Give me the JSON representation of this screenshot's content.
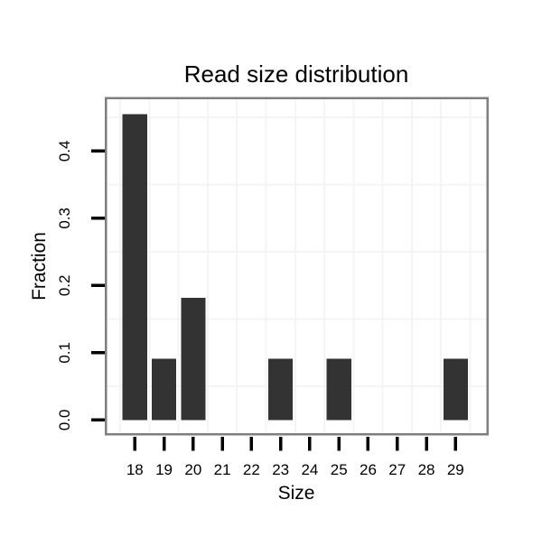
{
  "chart_data": {
    "type": "bar",
    "title": "Read size distribution",
    "xlabel": "Size",
    "ylabel": "Fraction",
    "categories": [
      18,
      19,
      20,
      21,
      22,
      23,
      24,
      25,
      26,
      27,
      28,
      29
    ],
    "values": [
      0.455,
      0.091,
      0.182,
      0,
      0,
      0.091,
      0,
      0.091,
      0,
      0,
      0,
      0.091
    ],
    "x_tick_labels": [
      "18",
      "19",
      "20",
      "21",
      "22",
      "23",
      "24",
      "25",
      "26",
      "27",
      "28",
      "29"
    ],
    "y_tick_values": [
      0.0,
      0.1,
      0.2,
      0.3,
      0.4
    ],
    "y_tick_labels": [
      "0.0",
      "0.1",
      "0.2",
      "0.3",
      "0.4"
    ],
    "xlim": [
      17.0,
      30.09
    ],
    "ylim": [
      -0.021,
      0.479
    ],
    "bar_width_units": 0.84,
    "grid": "minor gridlines only, midway between ticks",
    "legend": "none",
    "colors": {
      "bar": "#333333",
      "panel_border": "#7e7e7e",
      "gridline": "#f4f4f4",
      "tick": "#000000",
      "text": "#000000",
      "background": "#ffffff"
    }
  }
}
